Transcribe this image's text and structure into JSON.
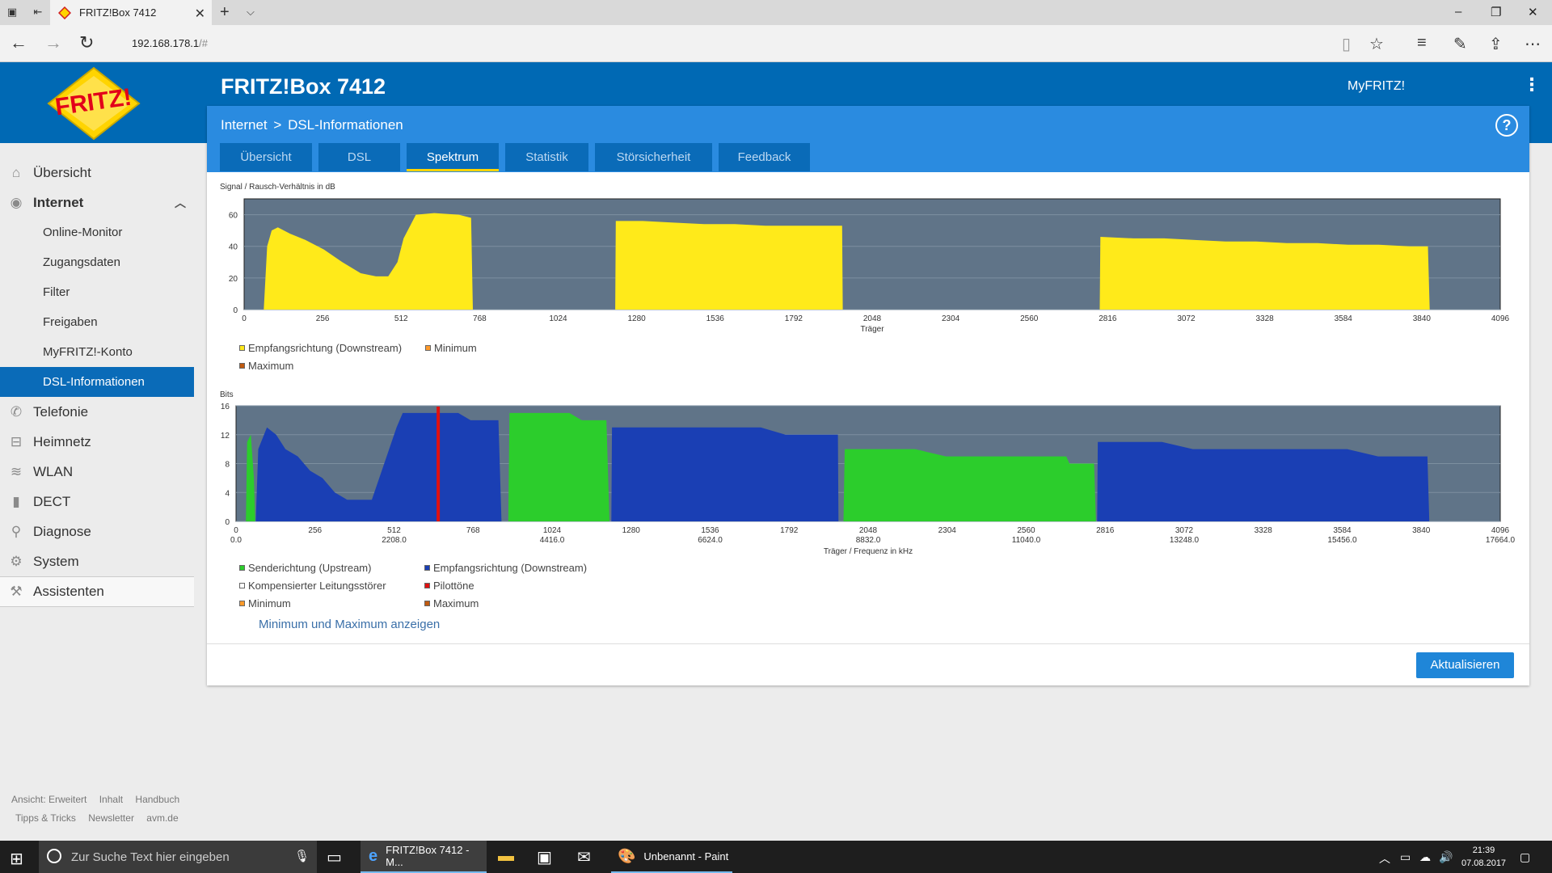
{
  "browser": {
    "tab_title": "FRITZ!Box 7412",
    "url_host": "192.168.178.1",
    "url_rest": "/#"
  },
  "header": {
    "box_title": "FRITZ!Box 7412",
    "myfritz": "MyFRITZ!"
  },
  "breadcrumb": {
    "part1": "Internet",
    "separator": ">",
    "part2": "DSL-Informationen"
  },
  "help_label": "?",
  "tabs": [
    {
      "label": "Übersicht"
    },
    {
      "label": "DSL"
    },
    {
      "label": "Spektrum"
    },
    {
      "label": "Statistik"
    },
    {
      "label": "Störsicherheit"
    },
    {
      "label": "Feedback"
    }
  ],
  "sidebar": {
    "items": [
      {
        "label": "Übersicht",
        "icon": "home-icon"
      },
      {
        "label": "Internet",
        "icon": "globe-icon"
      },
      {
        "label": "Telefonie",
        "icon": "phone-icon"
      },
      {
        "label": "Heimnetz",
        "icon": "network-icon"
      },
      {
        "label": "WLAN",
        "icon": "wifi-icon"
      },
      {
        "label": "DECT",
        "icon": "dect-icon"
      },
      {
        "label": "Diagnose",
        "icon": "diagnose-icon"
      },
      {
        "label": "System",
        "icon": "system-icon"
      },
      {
        "label": "Assistenten",
        "icon": "assistant-icon"
      }
    ],
    "sub_items": [
      {
        "label": "Online-Monitor"
      },
      {
        "label": "Zugangsdaten"
      },
      {
        "label": "Filter"
      },
      {
        "label": "Freigaben"
      },
      {
        "label": "MyFRITZ!-Konto"
      },
      {
        "label": "DSL-Informationen"
      }
    ]
  },
  "footer": {
    "row1": [
      "Ansicht: Erweitert",
      "Inhalt",
      "Handbuch"
    ],
    "row2": [
      "Tipps & Tricks",
      "Newsletter",
      "avm.de"
    ]
  },
  "snr_chart": {
    "ylabel": "Signal / Rausch-Verhältnis in dB",
    "xlabel": "Träger",
    "legend": [
      "Empfangsrichtung (Downstream)",
      "Minimum",
      "Maximum"
    ]
  },
  "bits_chart": {
    "ylabel": "Bits",
    "xlabel": "Träger / Frequenz in kHz",
    "legend": [
      "Senderichtung (Upstream)",
      "Empfangsrichtung (Downstream)",
      "Kompensierter Leitungsstörer",
      "Pilottöne",
      "Minimum",
      "Maximum"
    ]
  },
  "minmax_link": "Minimum und Maximum anzeigen",
  "update_button": "Aktualisieren",
  "colors": {
    "fritz_blue": "#0069b4",
    "plot_bg": "#607488",
    "snr_yellow": "#ffea1a",
    "upstream_green": "#2ccd2c",
    "downstream_blue": "#1a3fb4",
    "pilot_red": "#e01010"
  },
  "chart_data": [
    {
      "type": "area",
      "ylabel": "Signal / Rausch-Verhältnis in dB",
      "xlabel": "Träger",
      "xlim": [
        0,
        4096
      ],
      "ylim": [
        0,
        70
      ],
      "xticks": [
        0,
        256,
        512,
        768,
        1024,
        1280,
        1536,
        1792,
        2048,
        2304,
        2560,
        2816,
        3072,
        3328,
        3584,
        3840,
        4096
      ],
      "yticks": [
        0,
        20,
        40,
        60
      ],
      "series": [
        {
          "name": "Empfangsrichtung (Downstream)",
          "points": [
            [
              64,
              0
            ],
            [
              75,
              40
            ],
            [
              90,
              50
            ],
            [
              110,
              52
            ],
            [
              150,
              48
            ],
            [
              200,
              44
            ],
            [
              260,
              38
            ],
            [
              320,
              30
            ],
            [
              380,
              23
            ],
            [
              430,
              21
            ],
            [
              470,
              21
            ],
            [
              500,
              30
            ],
            [
              520,
              45
            ],
            [
              560,
              60
            ],
            [
              620,
              61
            ],
            [
              700,
              60
            ],
            [
              740,
              58
            ],
            [
              746,
              0
            ],
            [
              1210,
              0
            ],
            [
              1212,
              56
            ],
            [
              1300,
              56
            ],
            [
              1400,
              55
            ],
            [
              1500,
              54
            ],
            [
              1600,
              54
            ],
            [
              1700,
              53
            ],
            [
              1790,
              53
            ],
            [
              1950,
              53
            ],
            [
              1952,
              0
            ],
            [
              2790,
              0
            ],
            [
              2792,
              46
            ],
            [
              2900,
              45
            ],
            [
              3000,
              45
            ],
            [
              3100,
              44
            ],
            [
              3200,
              43
            ],
            [
              3300,
              43
            ],
            [
              3400,
              42
            ],
            [
              3500,
              42
            ],
            [
              3600,
              41
            ],
            [
              3700,
              41
            ],
            [
              3800,
              40
            ],
            [
              3860,
              40
            ],
            [
              3866,
              0
            ]
          ]
        }
      ]
    },
    {
      "type": "area",
      "ylabel": "Bits",
      "xlabel": "Träger / Frequenz in kHz",
      "xlim": [
        0,
        4096
      ],
      "ylim": [
        0,
        16
      ],
      "xticks": [
        0,
        256,
        512,
        768,
        1024,
        1280,
        1536,
        1792,
        2048,
        2304,
        2560,
        2816,
        3072,
        3328,
        3584,
        3840,
        4096
      ],
      "freq_ticks": [
        [
          0,
          "0.0"
        ],
        [
          512,
          "2208.0"
        ],
        [
          1024,
          "4416.0"
        ],
        [
          1536,
          "6624.0"
        ],
        [
          2048,
          "8832.0"
        ],
        [
          2560,
          "11040.0"
        ],
        [
          3072,
          "13248.0"
        ],
        [
          3584,
          "15456.0"
        ],
        [
          4096,
          "17664.0"
        ]
      ],
      "yticks": [
        0,
        4,
        8,
        12,
        16
      ],
      "series": [
        {
          "name": "Senderichtung (Upstream)",
          "points": [
            [
              32,
              0
            ],
            [
              36,
              11
            ],
            [
              48,
              12
            ],
            [
              58,
              6
            ],
            [
              62,
              0
            ],
            [
              882,
              0
            ],
            [
              886,
              15
            ],
            [
              1000,
              15
            ],
            [
              1080,
              15
            ],
            [
              1120,
              14
            ],
            [
              1200,
              14
            ],
            [
              1210,
              0
            ],
            [
              1968,
              0
            ],
            [
              1972,
              10
            ],
            [
              2100,
              10
            ],
            [
              2200,
              10
            ],
            [
              2300,
              9
            ],
            [
              2500,
              9
            ],
            [
              2690,
              9
            ],
            [
              2700,
              8
            ],
            [
              2780,
              8
            ],
            [
              2786,
              0
            ]
          ]
        },
        {
          "name": "Empfangsrichtung (Downstream)",
          "points": [
            [
              64,
              0
            ],
            [
              72,
              10
            ],
            [
              100,
              13
            ],
            [
              130,
              12
            ],
            [
              160,
              10
            ],
            [
              200,
              9
            ],
            [
              240,
              7
            ],
            [
              280,
              6
            ],
            [
              320,
              4
            ],
            [
              360,
              3
            ],
            [
              440,
              3
            ],
            [
              480,
              8
            ],
            [
              520,
              13
            ],
            [
              540,
              15
            ],
            [
              640,
              15
            ],
            [
              720,
              15
            ],
            [
              760,
              14
            ],
            [
              850,
              14
            ],
            [
              860,
              0
            ],
            [
              1216,
              0
            ],
            [
              1218,
              13
            ],
            [
              1400,
              13
            ],
            [
              1700,
              13
            ],
            [
              1780,
              12
            ],
            [
              1950,
              12
            ],
            [
              1952,
              0
            ],
            [
              2790,
              0
            ],
            [
              2792,
              11
            ],
            [
              3000,
              11
            ],
            [
              3100,
              10
            ],
            [
              3400,
              10
            ],
            [
              3500,
              10
            ],
            [
              3600,
              10
            ],
            [
              3700,
              9
            ],
            [
              3860,
              9
            ],
            [
              3866,
              0
            ]
          ]
        },
        {
          "name": "Pilottöne",
          "x": [
            655
          ]
        }
      ]
    }
  ]
}
